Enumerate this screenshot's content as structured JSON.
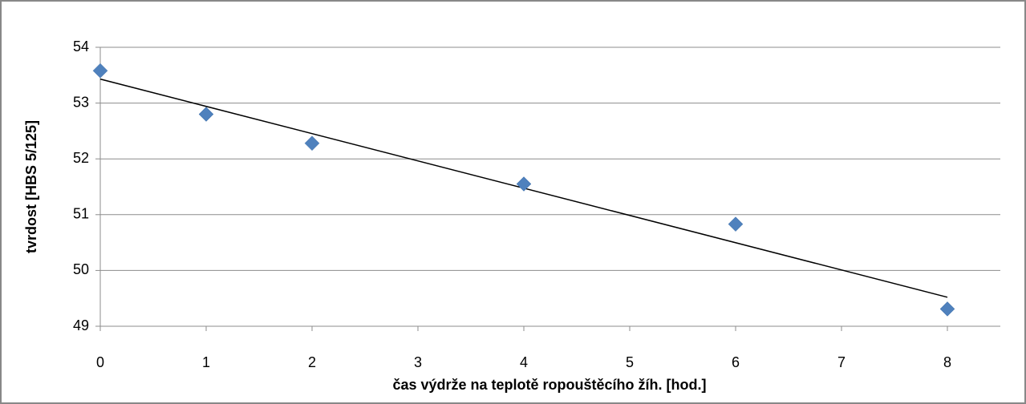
{
  "chart_data": {
    "type": "scatter",
    "x_label": "čas výdrže na teplotě ropouštěcího žíh. [hod.]",
    "y_label": "tvrdost [HBS 5/125]",
    "x": [
      0,
      1,
      2,
      4,
      6,
      8
    ],
    "values": [
      53.58,
      52.8,
      52.28,
      51.55,
      50.83,
      49.31
    ],
    "color": "#4f81bd",
    "trendline": {
      "x": [
        0,
        8
      ],
      "values": [
        53.43,
        49.52
      ],
      "color": "#000000"
    },
    "xlim": [
      0,
      8.5
    ],
    "xticks": [
      0,
      1,
      2,
      3,
      4,
      5,
      6,
      7,
      8
    ],
    "ylim": [
      49,
      54
    ],
    "yticks": [
      49,
      50,
      51,
      52,
      53,
      54
    ],
    "grid": true
  }
}
